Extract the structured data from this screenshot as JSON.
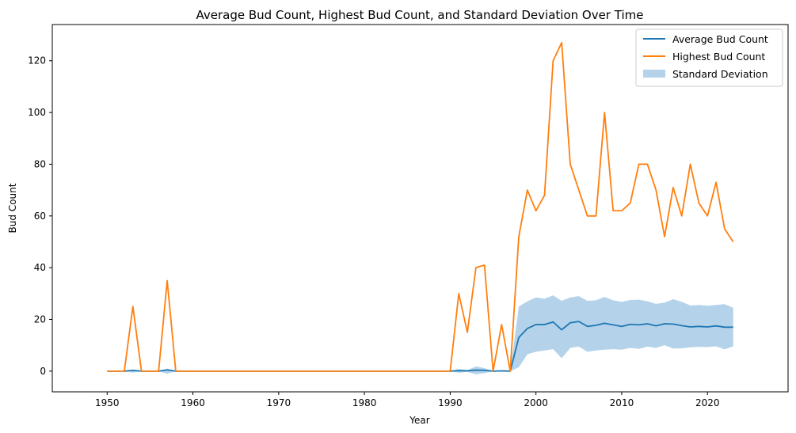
{
  "chart_data": {
    "type": "line",
    "title": "Average Bud Count, Highest Bud Count, and Standard Deviation Over Time",
    "xlabel": "Year",
    "ylabel": "Bud Count",
    "xlim": [
      1943.6,
      2029.4
    ],
    "ylim": [
      -8,
      134
    ],
    "xticks": [
      1950,
      1960,
      1970,
      1980,
      1990,
      2000,
      2010,
      2020
    ],
    "yticks": [
      0,
      20,
      40,
      60,
      80,
      100,
      120
    ],
    "grid": false,
    "legend_position": "top-right",
    "colors": {
      "average": "#1f77b4",
      "highest": "#ff7f0e",
      "std_band": "#b4d3ea"
    },
    "x": [
      1950,
      1951,
      1952,
      1953,
      1954,
      1955,
      1956,
      1957,
      1958,
      1959,
      1960,
      1961,
      1962,
      1963,
      1964,
      1965,
      1966,
      1967,
      1968,
      1969,
      1970,
      1971,
      1972,
      1973,
      1974,
      1975,
      1976,
      1977,
      1978,
      1979,
      1980,
      1981,
      1982,
      1983,
      1984,
      1985,
      1986,
      1987,
      1988,
      1989,
      1990,
      1991,
      1992,
      1993,
      1994,
      1995,
      1996,
      1997,
      1998,
      1999,
      2000,
      2001,
      2002,
      2003,
      2004,
      2005,
      2006,
      2007,
      2008,
      2009,
      2010,
      2011,
      2012,
      2013,
      2014,
      2015,
      2016,
      2017,
      2018,
      2019,
      2020,
      2021,
      2022,
      2023
    ],
    "series": [
      {
        "name": "Average Bud Count",
        "values": [
          0,
          0,
          0,
          0.3,
          0,
          0,
          0,
          0.5,
          0,
          0,
          0,
          0,
          0,
          0,
          0,
          0,
          0,
          0,
          0,
          0,
          0,
          0,
          0,
          0,
          0,
          0,
          0,
          0,
          0,
          0,
          0,
          0,
          0,
          0,
          0,
          0,
          0,
          0,
          0,
          0,
          0,
          0.2,
          0.1,
          0.4,
          0.3,
          0,
          0.1,
          0,
          13,
          16.5,
          18,
          18,
          19,
          16,
          18.7,
          19.2,
          17.3,
          17.7,
          18.5,
          17.9,
          17.3,
          18.1,
          17.9,
          18.3,
          17.5,
          18.3,
          18.2,
          17.6,
          17.1,
          17.3,
          17.1,
          17.5,
          17,
          17
        ]
      },
      {
        "name": "Highest Bud Count",
        "values": [
          0,
          0,
          0,
          25,
          0,
          0,
          0,
          35,
          0,
          0,
          0,
          0,
          0,
          0,
          0,
          0,
          0,
          0,
          0,
          0,
          0,
          0,
          0,
          0,
          0,
          0,
          0,
          0,
          0,
          0,
          0,
          0,
          0,
          0,
          0,
          0,
          0,
          0,
          0,
          0,
          0,
          30,
          15,
          40,
          41,
          0,
          18,
          0,
          52,
          70,
          62,
          68,
          120,
          127,
          80,
          70,
          60,
          60,
          100,
          62,
          62,
          65,
          80,
          80,
          70,
          52,
          71,
          60,
          80,
          65,
          60,
          73,
          55,
          50
        ]
      },
      {
        "name": "Standard Deviation",
        "lower": [
          0,
          0,
          0,
          -0.6,
          0,
          0,
          0,
          -1,
          0,
          0,
          0,
          0,
          0,
          0,
          0,
          0,
          0,
          0,
          0,
          0,
          0,
          0,
          0,
          0,
          0,
          0,
          0,
          0,
          0,
          0,
          0,
          0,
          0,
          0,
          0,
          0,
          0,
          0,
          0,
          0,
          0,
          -0.6,
          -0.3,
          -1.2,
          -0.8,
          0,
          -0.2,
          0,
          1.5,
          6.5,
          7.5,
          8,
          8.5,
          5,
          9,
          9.5,
          7.5,
          8,
          8.3,
          8.5,
          8.3,
          9,
          8.6,
          9.5,
          9,
          10,
          8.7,
          8.8,
          9.2,
          9.4,
          9.3,
          9.6,
          8.4,
          9.6
        ],
        "upper": [
          0,
          0,
          0,
          0.6,
          0,
          0,
          0,
          1,
          0,
          0,
          0,
          0,
          0,
          0,
          0,
          0,
          0,
          0,
          0,
          0,
          0,
          0,
          0,
          0,
          0,
          0,
          0,
          0,
          0,
          0,
          0,
          0,
          0,
          0,
          0,
          0,
          0,
          0,
          0,
          0,
          0,
          0.8,
          0.4,
          1.8,
          1.2,
          0,
          0.3,
          0,
          25,
          27,
          28.5,
          28,
          29.3,
          27.2,
          28.5,
          29,
          27.2,
          27.4,
          28.7,
          27.4,
          26.8,
          27.5,
          27.6,
          27,
          26,
          26.5,
          27.8,
          26.8,
          25.4,
          25.6,
          25.3,
          25.6,
          25.9,
          24.5
        ]
      }
    ]
  }
}
